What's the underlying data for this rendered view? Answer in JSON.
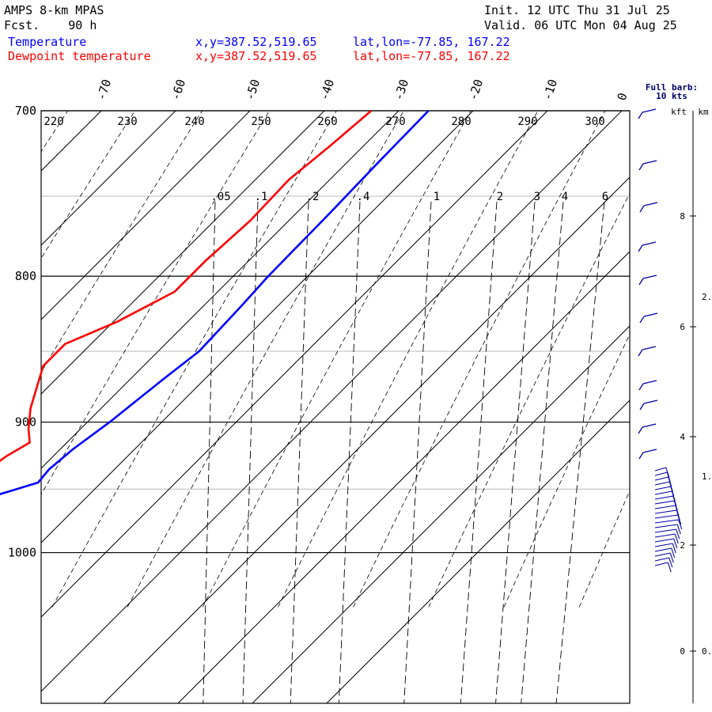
{
  "header": {
    "title": "AMPS 8-km MPAS",
    "fcst_label": "Fcst.",
    "fcst_value": "90 h",
    "init": "Init. 12 UTC Thu 31 Jul 25",
    "valid": "Valid. 06 UTC Mon 04 Aug 25",
    "series": [
      {
        "label": "Temperature",
        "xy": "x,y=387.52,519.65",
        "latlon": "lat,lon=-77.85, 167.22",
        "color": "#0000ff"
      },
      {
        "label": "Dewpoint temperature",
        "xy": "x,y=387.52,519.65",
        "latlon": "lat,lon=-77.85, 167.22",
        "color": "#ff0000"
      }
    ]
  },
  "barb_legend": {
    "line1": "Full barb:",
    "line2": "10 kts"
  },
  "height_axis": {
    "kft_label": "kft",
    "km_label": "km",
    "kft_ticks": [
      "0",
      "2",
      "4",
      "6",
      "8"
    ],
    "km_ticks": [
      "0.",
      "1.",
      "2."
    ]
  },
  "chart_data": {
    "type": "line",
    "diagram": "skew-T log-p",
    "y_axis": {
      "quantity": "pressure (hPa)",
      "scale": "log",
      "range": [
        1040,
        700
      ],
      "tick_labels": [
        "700",
        "800",
        "900",
        "1000"
      ]
    },
    "x_axis": {
      "quantity": "temperature (C)",
      "tick_labels": [
        "-70",
        "-60",
        "-50",
        "-40",
        "-30",
        "-20",
        "-10",
        "0"
      ]
    },
    "isentrope_labels": [
      "220",
      "230",
      "240",
      "250",
      "260",
      "270",
      "280",
      "290",
      "300"
    ],
    "mixing_ratio_labels": [
      ".05",
      ".1",
      ".2",
      ".4",
      "1",
      "2",
      "3",
      "4",
      "6"
    ],
    "series": [
      {
        "name": "Temperature",
        "color": "#0000ff",
        "points": [
          [
            962,
            -37.0
          ],
          [
            955,
            -32.5
          ],
          [
            950,
            -30.5
          ],
          [
            945,
            -28.5
          ],
          [
            935,
            -28.8
          ],
          [
            920,
            -28.3
          ],
          [
            900,
            -27.0
          ],
          [
            870,
            -25.6
          ],
          [
            850,
            -24.5
          ],
          [
            820,
            -24.9
          ],
          [
            800,
            -25.3
          ],
          [
            760,
            -25.5
          ],
          [
            730,
            -25.8
          ],
          [
            700,
            -26.0
          ]
        ]
      },
      {
        "name": "Dewpoint temperature",
        "color": "#ff0000",
        "points": [
          [
            962,
            -39.5
          ],
          [
            955,
            -40.3
          ],
          [
            952,
            -40.5
          ],
          [
            948,
            -38.0
          ],
          [
            940,
            -37.3
          ],
          [
            925,
            -36.3
          ],
          [
            915,
            -35.0
          ],
          [
            905,
            -37.0
          ],
          [
            890,
            -39.5
          ],
          [
            860,
            -43.5
          ],
          [
            845,
            -43.5
          ],
          [
            830,
            -39.5
          ],
          [
            810,
            -35.8
          ],
          [
            790,
            -35.8
          ],
          [
            765,
            -35.2
          ],
          [
            740,
            -35.5
          ],
          [
            720,
            -34.5
          ],
          [
            700,
            -33.7
          ]
        ]
      }
    ],
    "wind_barbs": {
      "full_barb_kts": 10
    }
  }
}
